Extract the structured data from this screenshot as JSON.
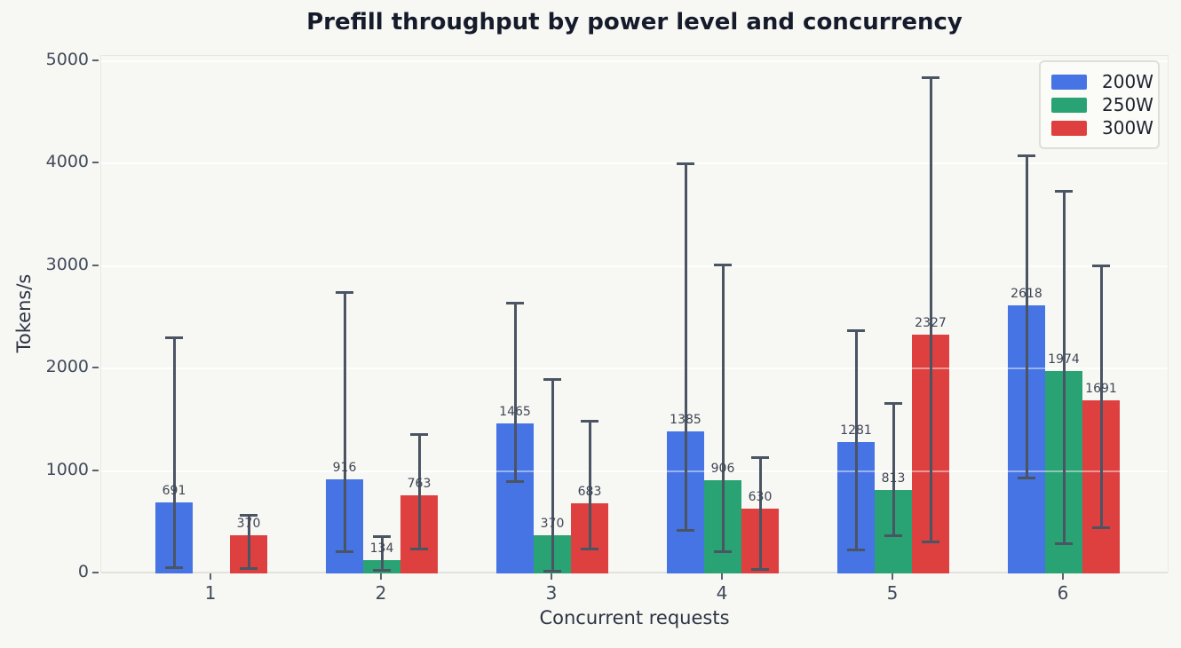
{
  "figure": {
    "title": "Prefill throughput by power level and concurrency",
    "x_axis_label": "Concurrent requests",
    "y_axis_label": "Tokens/s"
  },
  "chart_data": {
    "type": "bar",
    "title": "Prefill throughput by power level and concurrency",
    "xlabel": "Concurrent requests",
    "ylabel": "Tokens/s",
    "categories": [
      "1",
      "2",
      "3",
      "4",
      "5",
      "6"
    ],
    "ylim": [
      0,
      5000
    ],
    "yticks": [
      0,
      1000,
      2000,
      3000,
      4000,
      5000
    ],
    "grid": "horizontal-white-gridlines",
    "legend_position": "upper-right",
    "bar_value_labels_shown": true,
    "error_bars": "asymmetric range whiskers (endpoints estimated from gridlines)",
    "series": [
      {
        "name": "200W",
        "color": "#4674e4",
        "values": [
          691,
          916,
          1465,
          1385,
          1281,
          2618
        ],
        "error_low": [
          60,
          210,
          900,
          420,
          230,
          930
        ],
        "error_high": [
          2300,
          2740,
          2640,
          4000,
          2370,
          4080
        ]
      },
      {
        "name": "250W",
        "color": "#29a274",
        "values": [
          null,
          134,
          370,
          906,
          813,
          1974
        ],
        "error_low": [
          null,
          30,
          20,
          210,
          370,
          290
        ],
        "error_high": [
          null,
          360,
          1890,
          3010,
          1660,
          3730
        ]
      },
      {
        "name": "300W",
        "color": "#de4040",
        "values": [
          370,
          763,
          683,
          630,
          2327,
          1691
        ],
        "error_low": [
          50,
          240,
          240,
          40,
          310,
          450
        ],
        "error_high": [
          570,
          1360,
          1490,
          1130,
          4840,
          3000
        ]
      }
    ],
    "style": {
      "background": "#f7f7f4",
      "errorbar_color": "#4b5463",
      "title_color": "#161b2b",
      "tick_label_color": "#404a59",
      "axis_label_color": "#2c3442",
      "value_label_color": "#3e4654"
    }
  }
}
